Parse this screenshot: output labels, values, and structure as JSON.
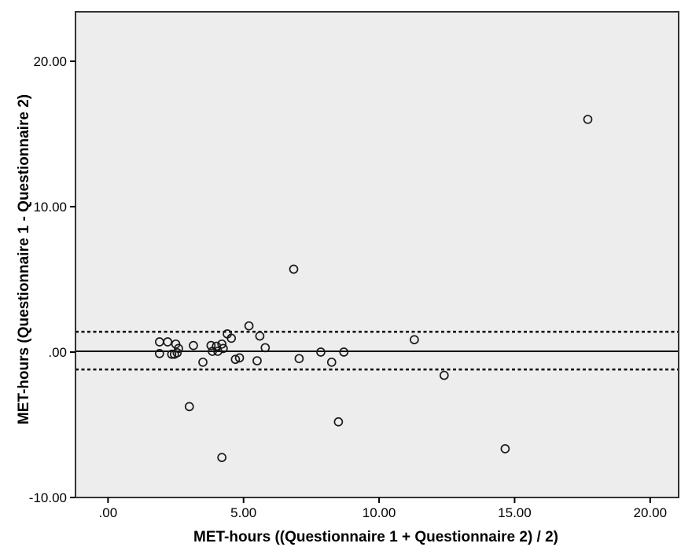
{
  "chart_data": {
    "type": "scatter",
    "title": "",
    "xlabel": "MET-hours ((Questionnaire 1 + Questionnaire 2) / 2)",
    "ylabel": "MET-hours (Questionnaire 1 - Questionnaire 2)",
    "xlim": [
      -1.2,
      21.05
    ],
    "ylim": [
      -10,
      23.4
    ],
    "grid": false,
    "legend_position": "none",
    "x_ticks": [
      {
        "value": 0,
        "label": ".00"
      },
      {
        "value": 5,
        "label": "5.00"
      },
      {
        "value": 10,
        "label": "10.00"
      },
      {
        "value": 15,
        "label": "15.00"
      },
      {
        "value": 20,
        "label": "20.00"
      }
    ],
    "y_ticks": [
      {
        "value": -10,
        "label": "-10.00"
      },
      {
        "value": 0,
        "label": ".00"
      },
      {
        "value": 10,
        "label": "10.00"
      },
      {
        "value": 20,
        "label": "20.00"
      }
    ],
    "reference_lines": [
      {
        "name": "mean-difference-line",
        "y": 0.05,
        "style": "solid"
      },
      {
        "name": "upper-limit-line",
        "y": 1.4,
        "style": "dashed"
      },
      {
        "name": "lower-limit-line",
        "y": -1.2,
        "style": "dashed"
      }
    ],
    "marker": "open-circle",
    "points": [
      [
        1.9,
        0.7
      ],
      [
        2.2,
        0.7
      ],
      [
        2.5,
        0.55
      ],
      [
        2.6,
        0.25
      ],
      [
        1.9,
        -0.1
      ],
      [
        2.35,
        -0.15
      ],
      [
        2.45,
        -0.15
      ],
      [
        2.55,
        -0.05
      ],
      [
        3.15,
        0.45
      ],
      [
        3.0,
        -3.75
      ],
      [
        3.5,
        -0.7
      ],
      [
        3.8,
        0.45
      ],
      [
        4.0,
        0.4
      ],
      [
        4.2,
        0.55
      ],
      [
        3.85,
        0.05
      ],
      [
        4.05,
        0.05
      ],
      [
        4.25,
        0.25
      ],
      [
        4.4,
        1.25
      ],
      [
        4.55,
        0.95
      ],
      [
        5.2,
        1.8
      ],
      [
        5.6,
        1.1
      ],
      [
        5.8,
        0.3
      ],
      [
        4.7,
        -0.5
      ],
      [
        4.85,
        -0.4
      ],
      [
        5.5,
        -0.6
      ],
      [
        4.2,
        -7.25
      ],
      [
        6.85,
        5.7
      ],
      [
        7.05,
        -0.45
      ],
      [
        7.85,
        0.0
      ],
      [
        8.25,
        -0.7
      ],
      [
        8.7,
        0.0
      ],
      [
        8.5,
        -4.8
      ],
      [
        11.3,
        0.85
      ],
      [
        12.4,
        -1.6
      ],
      [
        14.65,
        -6.65
      ],
      [
        17.7,
        16.0
      ]
    ],
    "colors": {
      "page_bg": "#ffffff",
      "plot_bg": "#ededed",
      "border": "#333333",
      "line": "#000000",
      "marker": "#1a1a1a",
      "text": "#000000"
    }
  }
}
